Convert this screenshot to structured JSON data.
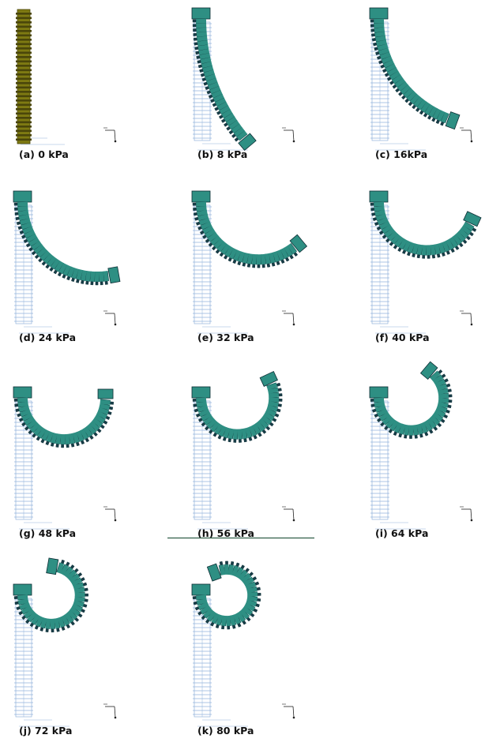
{
  "colors": {
    "background": "#ffffff",
    "finger_fill": "#2e8f83",
    "finger_dark": "#163c47",
    "finger_edge": "#0d2d34",
    "undeformed_fill": "#7e7a12",
    "undeformed_edge": "#4a460a",
    "mesh_outline": "#93b3dc",
    "separator_line": "#2f5e46"
  },
  "icons": [
    "coordinate-triad-icon"
  ],
  "panels": [
    {
      "caption": "(a)  0 kPa",
      "pressure_kpa": 0,
      "bend_deg": 0
    },
    {
      "caption": "(b)  8 kPa",
      "pressure_kpa": 8,
      "bend_deg": 40
    },
    {
      "caption": "(c) 16kPa",
      "pressure_kpa": 16,
      "bend_deg": 70
    },
    {
      "caption": "(d) 24 kPa",
      "pressure_kpa": 24,
      "bend_deg": 100
    },
    {
      "caption": "(e) 32 kPa",
      "pressure_kpa": 32,
      "bend_deg": 130
    },
    {
      "caption": "(f) 40 kPa",
      "pressure_kpa": 40,
      "bend_deg": 155
    },
    {
      "caption": "(g) 48 kPa",
      "pressure_kpa": 48,
      "bend_deg": 180
    },
    {
      "caption": "(h) 56 kPa",
      "pressure_kpa": 56,
      "bend_deg": 205
    },
    {
      "caption": "(i) 64 kPa",
      "pressure_kpa": 64,
      "bend_deg": 230
    },
    {
      "caption": "(j) 72 kPa",
      "pressure_kpa": 72,
      "bend_deg": 260
    },
    {
      "caption": "(k) 80 kPa",
      "pressure_kpa": 80,
      "bend_deg": 290
    }
  ]
}
